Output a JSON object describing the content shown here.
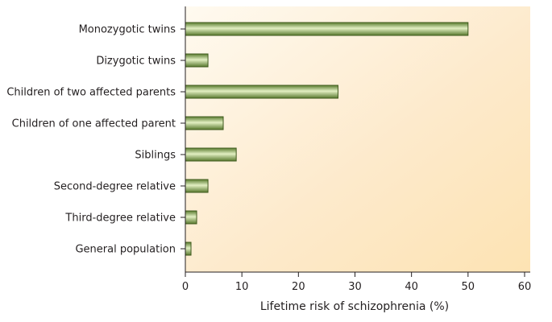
{
  "chart_data": {
    "type": "bar",
    "orientation": "horizontal",
    "categories": [
      "Monozygotic twins",
      "Dizygotic twins",
      "Children of two affected parents",
      "Children of one affected parent",
      "Siblings",
      "Second-degree relative",
      "Third-degree relative",
      "General population"
    ],
    "values": [
      50,
      4,
      27,
      6.7,
      9,
      4,
      2,
      1
    ],
    "xlabel": "Lifetime risk of schizophrenia (%)",
    "ylabel": "",
    "xlim": [
      0,
      61
    ],
    "xticks": [
      0,
      10,
      20,
      30,
      40,
      50,
      60
    ],
    "grid": false,
    "colors": {
      "bar_light": "#d8e8b4",
      "bar_mid": "#8fb061",
      "bar_dark": "#4b6b26",
      "bg_light": "#fffbf2",
      "bg_warm": "#fde7bd"
    }
  }
}
